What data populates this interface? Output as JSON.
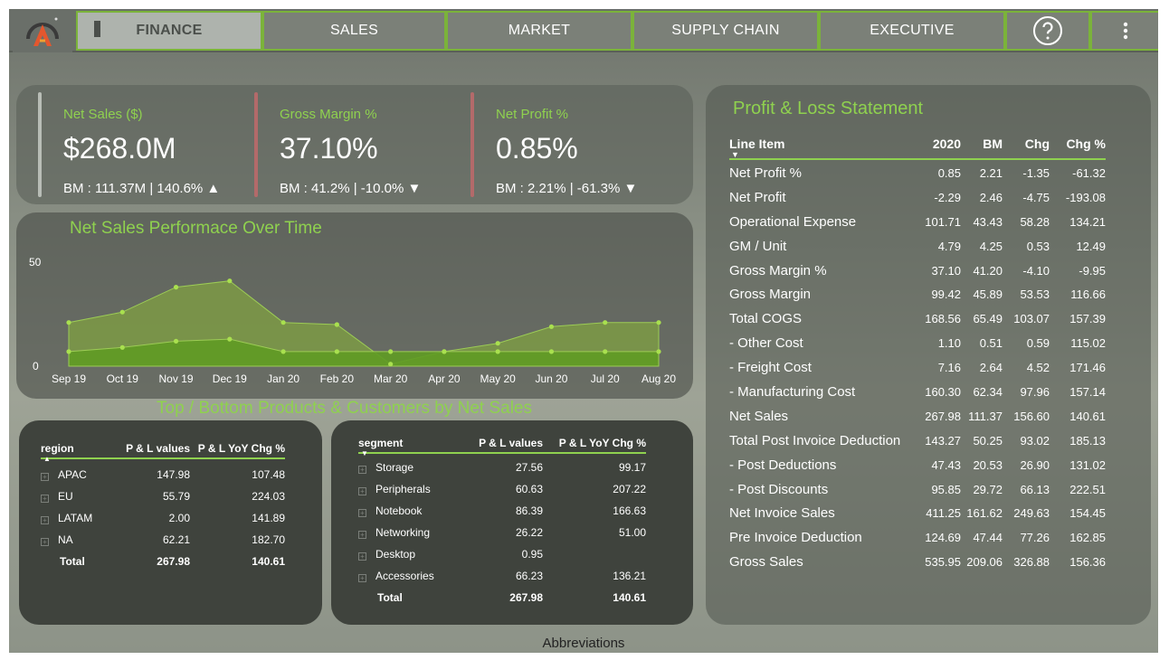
{
  "nav": {
    "tabs": [
      {
        "label": "FINANCE",
        "active": true
      },
      {
        "label": "SALES",
        "active": false
      },
      {
        "label": "MARKET",
        "active": false
      },
      {
        "label": "SUPPLY CHAIN",
        "active": false
      },
      {
        "label": "EXECUTIVE",
        "active": false
      }
    ],
    "help_icon": "help-circle-icon",
    "menu_icon": "more-vertical-icon"
  },
  "kpis": [
    {
      "label": "Net Sales ($)",
      "value": "$268.0M",
      "bm": "BM : 111.37M | 140.6% ▲",
      "accent": "#b8bdb6"
    },
    {
      "label": "Gross Margin %",
      "value": "37.10%",
      "bm": "BM : 41.2% | -10.0% ▼",
      "accent": "#b36a6a"
    },
    {
      "label": "Net Profit %",
      "value": "0.85%",
      "bm": "BM : 2.21% | -61.3% ▼",
      "accent": "#b36a6a"
    }
  ],
  "chart_data": {
    "type": "area",
    "title": "Net Sales Performace Over Time",
    "x": [
      "Sep 19",
      "Oct 19",
      "Nov 19",
      "Dec 19",
      "Jan 20",
      "Feb 20",
      "Mar 20",
      "Apr 20",
      "May 20",
      "Jun 20",
      "Jul 20",
      "Aug 20"
    ],
    "series": [
      {
        "values": [
          21,
          26,
          38,
          41,
          21,
          20,
          1,
          7,
          11,
          19,
          21,
          21
        ]
      },
      {
        "values": [
          7,
          9,
          12,
          13,
          7,
          7,
          7,
          7,
          7,
          7,
          7,
          7
        ]
      }
    ],
    "yticks": [
      "50",
      "0"
    ],
    "ylim": [
      0,
      50
    ],
    "colors": {
      "top": "#7c9a45",
      "bottom": "#5f9b23",
      "points": "#a9e04f"
    }
  },
  "top_bottom_title": "Top / Bottom Products & Customers by Net Sales",
  "region_table": {
    "headers": [
      "region",
      "P & L values",
      "P & L YoY Chg %"
    ],
    "rows": [
      [
        "APAC",
        "147.98",
        "107.48"
      ],
      [
        "EU",
        "55.79",
        "224.03"
      ],
      [
        "LATAM",
        "2.00",
        "141.89"
      ],
      [
        "NA",
        "62.21",
        "182.70"
      ]
    ],
    "total": [
      "Total",
      "267.98",
      "140.61"
    ]
  },
  "segment_table": {
    "headers": [
      "segment",
      "P & L values",
      "P & L YoY Chg %"
    ],
    "rows": [
      [
        "Storage",
        "27.56",
        "99.17"
      ],
      [
        "Peripherals",
        "60.63",
        "207.22"
      ],
      [
        "Notebook",
        "86.39",
        "166.63"
      ],
      [
        "Networking",
        "26.22",
        "51.00"
      ],
      [
        "Desktop",
        "0.95",
        ""
      ],
      [
        "Accessories",
        "66.23",
        "136.21"
      ]
    ],
    "total": [
      "Total",
      "267.98",
      "140.61"
    ]
  },
  "pl": {
    "title": "Profit & Loss Statement",
    "headers": [
      "Line Item",
      "2020",
      "BM",
      "Chg",
      "Chg %"
    ],
    "rows": [
      [
        "Net Profit %",
        "0.85",
        "2.21",
        "-1.35",
        "-61.32"
      ],
      [
        "Net Profit",
        "-2.29",
        "2.46",
        "-4.75",
        "-193.08"
      ],
      [
        "Operational Expense",
        "101.71",
        "43.43",
        "58.28",
        "134.21"
      ],
      [
        "GM / Unit",
        "4.79",
        "4.25",
        "0.53",
        "12.49"
      ],
      [
        "Gross Margin %",
        "37.10",
        "41.20",
        "-4.10",
        "-9.95"
      ],
      [
        "Gross Margin",
        "99.42",
        "45.89",
        "53.53",
        "116.66"
      ],
      [
        "Total COGS",
        "168.56",
        "65.49",
        "103.07",
        "157.39"
      ],
      [
        "- Other Cost",
        "1.10",
        "0.51",
        "0.59",
        "115.02"
      ],
      [
        "- Freight Cost",
        "7.16",
        "2.64",
        "4.52",
        "171.46"
      ],
      [
        "- Manufacturing Cost",
        "160.30",
        "62.34",
        "97.96",
        "157.14"
      ],
      [
        "Net Sales",
        "267.98",
        "111.37",
        "156.60",
        "140.61"
      ],
      [
        "Total Post Invoice Deduction",
        "143.27",
        "50.25",
        "93.02",
        "185.13"
      ],
      [
        "- Post Deductions",
        "47.43",
        "20.53",
        "26.90",
        "131.02"
      ],
      [
        "- Post Discounts",
        "95.85",
        "29.72",
        "66.13",
        "222.51"
      ],
      [
        "Net Invoice Sales",
        "411.25",
        "161.62",
        "249.63",
        "154.45"
      ],
      [
        "Pre Invoice Deduction",
        "124.69",
        "47.44",
        "77.26",
        "162.85"
      ],
      [
        "Gross Sales",
        "535.95",
        "209.06",
        "326.88",
        "156.36"
      ]
    ]
  },
  "footer": {
    "abbreviations": "Abbreviations"
  }
}
